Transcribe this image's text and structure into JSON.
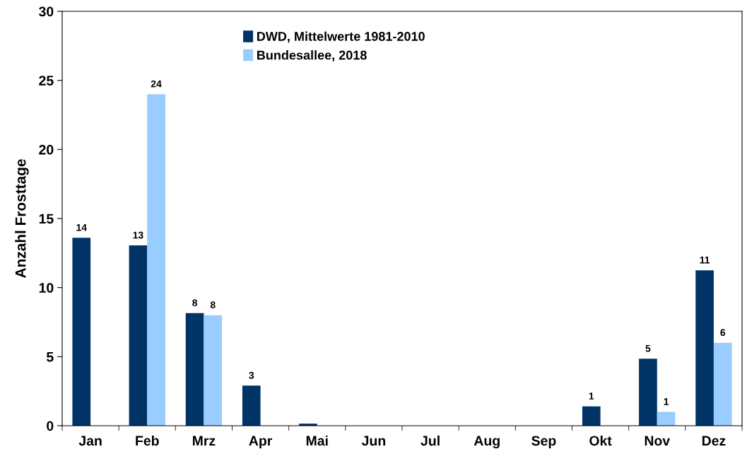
{
  "chart_data": {
    "type": "bar",
    "ylabel": "Anzahl Frosttage",
    "categories": [
      "Jan",
      "Feb",
      "Mrz",
      "Apr",
      "Mai",
      "Jun",
      "Jul",
      "Aug",
      "Sep",
      "Okt",
      "Nov",
      "Dez"
    ],
    "series": [
      {
        "name": "DWD, Mittelwerte 1981-2010",
        "color": "#003366",
        "values": [
          13.6,
          13.05,
          8.15,
          2.9,
          0.15,
          null,
          null,
          null,
          null,
          1.4,
          4.85,
          11.25
        ],
        "value_labels": [
          "14",
          "13",
          "8",
          "3",
          null,
          null,
          null,
          null,
          null,
          "1",
          "5",
          "11"
        ]
      },
      {
        "name": "Bundesallee, 2018",
        "color": "#99ccff",
        "values": [
          null,
          24,
          8,
          null,
          null,
          null,
          null,
          null,
          null,
          null,
          1,
          6
        ],
        "value_labels": [
          null,
          "24",
          "8",
          null,
          null,
          null,
          null,
          null,
          null,
          null,
          "1",
          "6"
        ]
      }
    ],
    "ylim": [
      0,
      30
    ],
    "yticks": [
      0,
      5,
      10,
      15,
      20,
      25,
      30
    ],
    "grid": false,
    "legend": "top"
  }
}
